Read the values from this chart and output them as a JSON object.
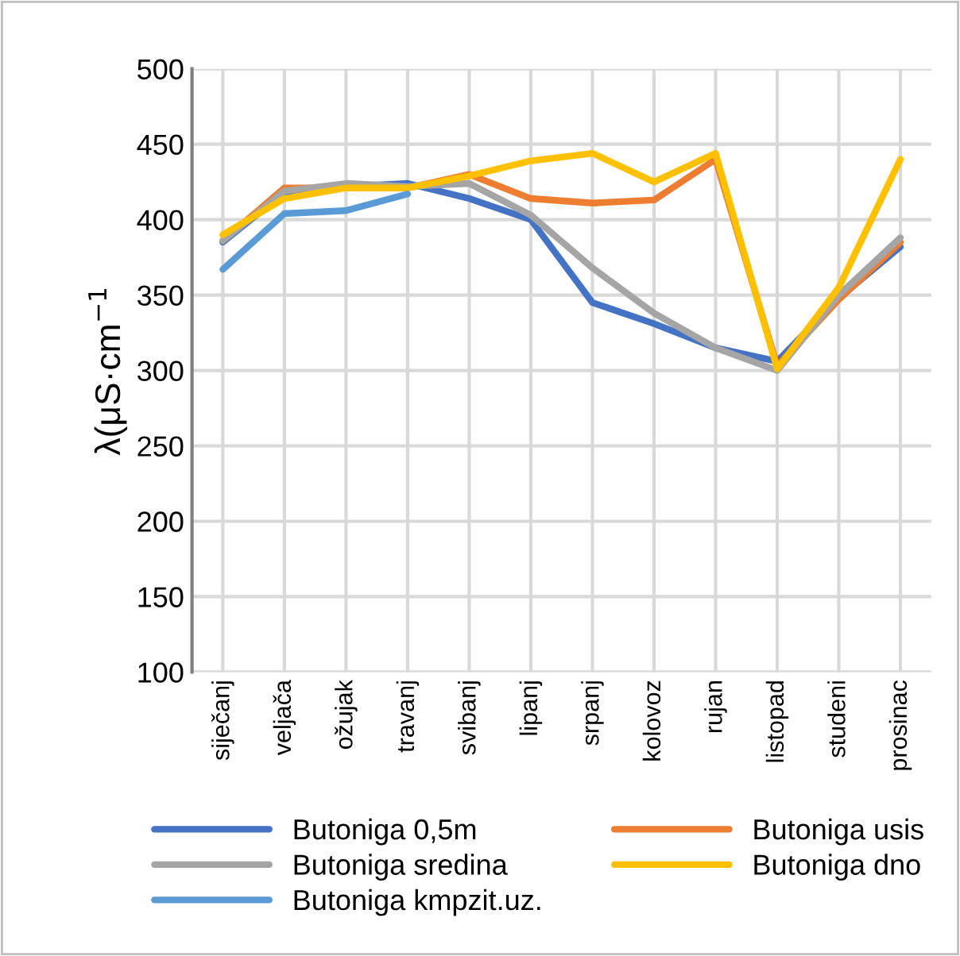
{
  "chart_data": {
    "type": "line",
    "ylabel": "λ(μS·cm$^{−1}$",
    "categories": [
      "siječanj",
      "veljača",
      "ožujak",
      "travanj",
      "svibanj",
      "lipanj",
      "srpanj",
      "kolovoz",
      "rujan",
      "listopad",
      "studeni",
      "prosinac"
    ],
    "series": [
      {
        "name": "Butoniga 0,5m",
        "color": "#4472c4",
        "values": [
          385,
          418,
          422,
          424,
          414,
          400,
          345,
          331,
          315,
          306,
          348,
          382
        ]
      },
      {
        "name": "Butoniga usis",
        "color": "#ed7d31",
        "values": [
          386,
          421,
          421,
          421,
          430,
          414,
          411,
          413,
          440,
          303,
          347,
          385
        ]
      },
      {
        "name": "Butoniga sredina",
        "color": "#a5a5a5",
        "values": [
          386,
          419,
          424,
          422,
          424,
          403,
          368,
          338,
          315,
          300,
          350,
          388
        ]
      },
      {
        "name": "Butoniga dno",
        "color": "#ffc000",
        "values": [
          390,
          414,
          421,
          421,
          429,
          439,
          444,
          425,
          444,
          301,
          355,
          440
        ]
      },
      {
        "name": "Butoniga kmpzit.uz.",
        "color": "#5b9bd5",
        "values": [
          367,
          404,
          406,
          417,
          null,
          null,
          null,
          null,
          null,
          null,
          null,
          null
        ]
      }
    ],
    "ylim": [
      100,
      500
    ],
    "yticks": [
      100,
      150,
      200,
      250,
      300,
      350,
      400,
      450,
      500
    ],
    "grid": true,
    "legend": "bottom",
    "marker": "none",
    "line_style": "solid"
  }
}
